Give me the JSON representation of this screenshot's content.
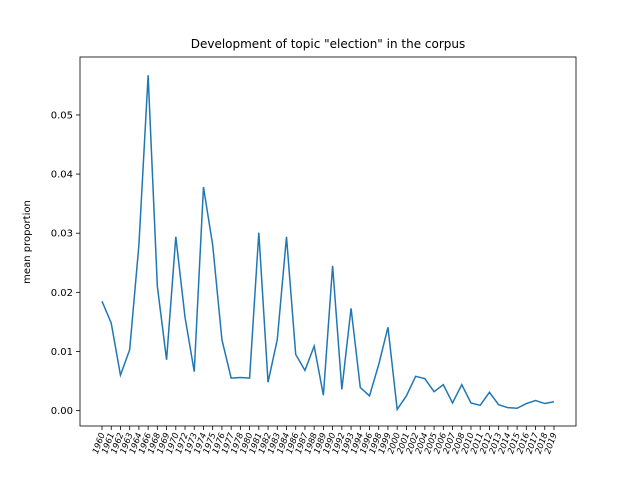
{
  "chart_data": {
    "type": "line",
    "title": "Development of topic \"election\" in the corpus",
    "ylabel": "mean proportion",
    "categories": [
      "1960",
      "1961",
      "1962",
      "1963",
      "1964",
      "1966",
      "1968",
      "1969",
      "1970",
      "1972",
      "1973",
      "1974",
      "1975",
      "1976",
      "1977",
      "1978",
      "1980",
      "1981",
      "1982",
      "1983",
      "1984",
      "1986",
      "1987",
      "1988",
      "1989",
      "1990",
      "1992",
      "1993",
      "1994",
      "1996",
      "1998",
      "1999",
      "2000",
      "2001",
      "2002",
      "2004",
      "2005",
      "2006",
      "2007",
      "2008",
      "2010",
      "2011",
      "2012",
      "2013",
      "2014",
      "2015",
      "2016",
      "2017",
      "2018",
      "2019"
    ],
    "series": [
      {
        "name": "election",
        "color": "#1f77b4",
        "values": [
          0.0185,
          0.0148,
          0.006,
          0.0103,
          0.028,
          0.0567,
          0.021,
          0.0086,
          0.0294,
          0.0158,
          0.0066,
          0.0378,
          0.028,
          0.012,
          0.0055,
          0.0056,
          0.0055,
          0.0301,
          0.0048,
          0.012,
          0.0294,
          0.0095,
          0.0068,
          0.0109,
          0.0026,
          0.0245,
          0.0036,
          0.0173,
          0.0039,
          0.0025,
          0.0078,
          0.0141,
          0.0002,
          0.0025,
          0.0058,
          0.0054,
          0.0032,
          0.0044,
          0.0013,
          0.0044,
          0.0013,
          0.0009,
          0.0031,
          0.001,
          0.0005,
          0.0004,
          0.0012,
          0.0017,
          0.0012,
          0.0015
        ]
      }
    ],
    "ylim": [
      -0.0026,
      0.0598
    ],
    "yticks": [
      {
        "value": 0,
        "label": "0.00"
      },
      {
        "value": 0.01,
        "label": "0.01"
      },
      {
        "value": 0.02,
        "label": "0.02"
      },
      {
        "value": 0.03,
        "label": "0.03"
      },
      {
        "value": 0.04,
        "label": "0.04"
      },
      {
        "value": 0.05,
        "label": "0.05"
      }
    ]
  }
}
